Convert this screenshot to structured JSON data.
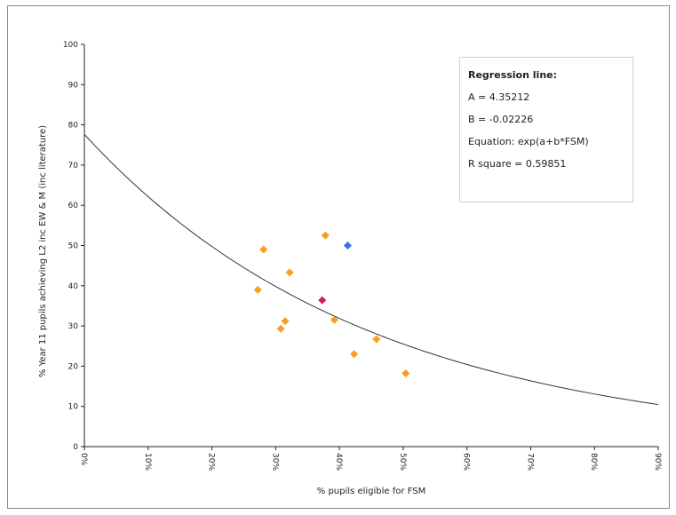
{
  "chart_data": {
    "type": "scatter",
    "xlabel": "% pupils eligible for FSM",
    "ylabel": "% Year 11 pupils achieving L2 inc EW & M (inc literature)",
    "xlim": [
      0,
      90
    ],
    "ylim": [
      0,
      100
    ],
    "x_ticks": [
      "0%",
      "10%",
      "20%",
      "30%",
      "40%",
      "50%",
      "60%",
      "70%",
      "80%",
      "90%"
    ],
    "y_ticks": [
      "0",
      "10",
      "20",
      "30",
      "40",
      "50",
      "60",
      "70",
      "80",
      "90",
      "100"
    ],
    "grid": false,
    "points": [
      {
        "x": 27.2,
        "y": 39.0,
        "color": "#f99f1c"
      },
      {
        "x": 28.1,
        "y": 49.0,
        "color": "#f99f1c"
      },
      {
        "x": 30.8,
        "y": 29.3,
        "color": "#f99f1c"
      },
      {
        "x": 31.5,
        "y": 31.2,
        "color": "#f99f1c"
      },
      {
        "x": 32.2,
        "y": 43.3,
        "color": "#f99f1c"
      },
      {
        "x": 37.3,
        "y": 36.4,
        "color": "#cc1f55"
      },
      {
        "x": 37.8,
        "y": 52.5,
        "color": "#f99f1c"
      },
      {
        "x": 39.2,
        "y": 31.5,
        "color": "#f99f1c"
      },
      {
        "x": 41.3,
        "y": 50.0,
        "color": "#3d6ee8"
      },
      {
        "x": 42.3,
        "y": 23.0,
        "color": "#f99f1c"
      },
      {
        "x": 45.8,
        "y": 26.7,
        "color": "#f99f1c"
      },
      {
        "x": 50.4,
        "y": 18.2,
        "color": "#f99f1c"
      }
    ],
    "regression": {
      "a": 4.35212,
      "b": -0.02226,
      "form": "exp(a+b*x)",
      "x_range": [
        0,
        90
      ]
    },
    "legend": {
      "placement": "top-right",
      "title": "Regression line:",
      "lines": [
        "A = 4.35212",
        "B = -0.02226",
        "Equation: exp(a+b*FSM)",
        "R square = 0.59851"
      ]
    }
  }
}
